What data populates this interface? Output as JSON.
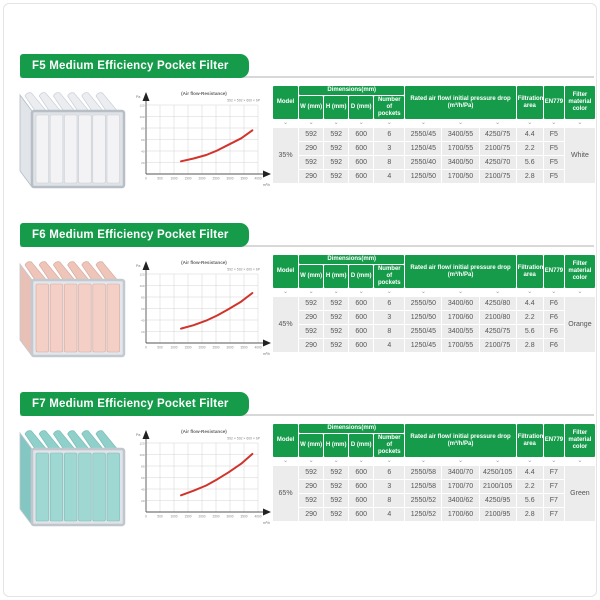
{
  "colors": {
    "brand_green": "#169b4b",
    "banner_text": "#ffffff",
    "row_bg": "#ececec",
    "cell_text": "#555555",
    "curve_red": "#d0342c",
    "divider": "#d8d8d8"
  },
  "icons": {
    "chevron_down": "⌄"
  },
  "table_header": {
    "model": "Model",
    "dimensions": "Dimensions(mm)",
    "w": "W (mm)",
    "h": "H (mm)",
    "d": "D (mm)",
    "pockets": "Number of pockets",
    "airflow": "Rated air flow/ initial pressure drop (m³/h/Pa)",
    "filtration": "Filtration area",
    "en779": "EN779",
    "material": "Filter material color"
  },
  "sections": [
    {
      "id": "f5",
      "banner": "F5 Medium Efficiency Pocket Filter",
      "product": {
        "name": "white-pocket-filter",
        "pocket_color": "#f3f3f5",
        "pocket_top_color": "#ebedf0",
        "side_color": "#e1e4e8",
        "frame_color": "#dfe3e7",
        "frame_stroke": "#b7bec6",
        "pocket_stroke": "#cbd0d6"
      },
      "table": {
        "model": "35%",
        "material_color": "White",
        "rows": [
          {
            "w": "592",
            "h": "592",
            "d": "600",
            "pockets": "6",
            "flow1": "2550/45",
            "flow2": "3400/55",
            "flow3": "4250/75",
            "area": "4.4",
            "grade": "F5"
          },
          {
            "w": "290",
            "h": "592",
            "d": "600",
            "pockets": "3",
            "flow1": "1250/45",
            "flow2": "1700/55",
            "flow3": "2100/75",
            "area": "2.2",
            "grade": "F5"
          },
          {
            "w": "592",
            "h": "592",
            "d": "600",
            "pockets": "8",
            "flow1": "2550/40",
            "flow2": "3400/50",
            "flow3": "4250/70",
            "area": "5.6",
            "grade": "F5"
          },
          {
            "w": "290",
            "h": "592",
            "d": "600",
            "pockets": "4",
            "flow1": "1250/50",
            "flow2": "1700/50",
            "flow3": "2100/75",
            "area": "2.8",
            "grade": "F5"
          }
        ]
      }
    },
    {
      "id": "f6",
      "banner": "F6 Medium Efficiency Pocket Filter",
      "product": {
        "name": "orange-pocket-filter",
        "pocket_color": "#f4cfc5",
        "pocket_top_color": "#f0c5b9",
        "side_color": "#e9c0b5",
        "frame_color": "#e3e6ea",
        "frame_stroke": "#c2c9d0",
        "pocket_stroke": "#d7aca1"
      },
      "table": {
        "model": "45%",
        "material_color": "Orange",
        "rows": [
          {
            "w": "592",
            "h": "592",
            "d": "600",
            "pockets": "6",
            "flow1": "2550/50",
            "flow2": "3400/60",
            "flow3": "4250/80",
            "area": "4.4",
            "grade": "F6"
          },
          {
            "w": "290",
            "h": "592",
            "d": "600",
            "pockets": "3",
            "flow1": "1250/50",
            "flow2": "1700/60",
            "flow3": "2100/80",
            "area": "2.2",
            "grade": "F6"
          },
          {
            "w": "592",
            "h": "592",
            "d": "600",
            "pockets": "8",
            "flow1": "2550/45",
            "flow2": "3400/55",
            "flow3": "4250/75",
            "area": "5.6",
            "grade": "F6"
          },
          {
            "w": "290",
            "h": "592",
            "d": "600",
            "pockets": "4",
            "flow1": "1250/45",
            "flow2": "1700/55",
            "flow3": "2100/75",
            "area": "2.8",
            "grade": "F6"
          }
        ]
      }
    },
    {
      "id": "f7",
      "banner": "F7 Medium Efficiency Pocket Filter",
      "product": {
        "name": "green-pocket-filter",
        "pocket_color": "#9fd8d3",
        "pocket_top_color": "#8fd0cb",
        "side_color": "#84c7c2",
        "frame_color": "#e0e4e8",
        "frame_stroke": "#bfc6cd",
        "pocket_stroke": "#7cbcb7"
      },
      "table": {
        "model": "65%",
        "material_color": "Green",
        "rows": [
          {
            "w": "592",
            "h": "592",
            "d": "600",
            "pockets": "6",
            "flow1": "2550/58",
            "flow2": "3400/70",
            "flow3": "4250/105",
            "area": "4.4",
            "grade": "F7"
          },
          {
            "w": "290",
            "h": "592",
            "d": "600",
            "pockets": "3",
            "flow1": "1250/58",
            "flow2": "1700/70",
            "flow3": "2100/105",
            "area": "2.2",
            "grade": "F7"
          },
          {
            "w": "592",
            "h": "592",
            "d": "600",
            "pockets": "8",
            "flow1": "2550/52",
            "flow2": "3400/62",
            "flow3": "4250/95",
            "area": "5.6",
            "grade": "F7"
          },
          {
            "w": "290",
            "h": "592",
            "d": "600",
            "pockets": "4",
            "flow1": "1250/52",
            "flow2": "1700/60",
            "flow3": "2100/95",
            "area": "2.8",
            "grade": "F7"
          }
        ]
      }
    }
  ],
  "chart_data": [
    {
      "type": "line",
      "title": "(Air flow-Resistance)",
      "legend": "592 × 592 × 600 × 6P",
      "xlabel": "m³/h",
      "ylabel": "Pa",
      "xlim": [
        0,
        4000
      ],
      "ylim": [
        0,
        120
      ],
      "grid": true,
      "x_tick_labels": [
        "0",
        "500",
        "1000",
        "1500",
        "2000",
        "2500",
        "3000",
        "3500",
        "4000"
      ],
      "y_tick_labels": [
        "20",
        "40",
        "60",
        "80",
        "100",
        "120"
      ],
      "series": [
        {
          "name": "592×592×600×6P",
          "points": [
            [
              1250,
              22
            ],
            [
              1700,
              27
            ],
            [
              2150,
              33
            ],
            [
              2550,
              41
            ],
            [
              2950,
              51
            ],
            [
              3400,
              62
            ],
            [
              3800,
              76
            ]
          ]
        }
      ]
    },
    {
      "type": "line",
      "title": "(Air flow-Resistance)",
      "legend": "592 × 592 × 600 × 6P",
      "xlabel": "m³/h",
      "ylabel": "Pa",
      "xlim": [
        0,
        4000
      ],
      "ylim": [
        0,
        120
      ],
      "grid": true,
      "x_tick_labels": [
        "0",
        "500",
        "1000",
        "1500",
        "2000",
        "2500",
        "3000",
        "3500",
        "4000"
      ],
      "y_tick_labels": [
        "20",
        "40",
        "60",
        "80",
        "100",
        "120"
      ],
      "series": [
        {
          "name": "592×592×600×6P",
          "points": [
            [
              1250,
              25
            ],
            [
              1700,
              31
            ],
            [
              2150,
              39
            ],
            [
              2550,
              48
            ],
            [
              2950,
              59
            ],
            [
              3400,
              72
            ],
            [
              3800,
              87
            ]
          ]
        }
      ]
    },
    {
      "type": "line",
      "title": "(Air flow-Resistance)",
      "legend": "592 × 592 × 600 × 6P",
      "xlabel": "m³/h",
      "ylabel": "Pa",
      "xlim": [
        0,
        4000
      ],
      "ylim": [
        0,
        120
      ],
      "grid": true,
      "x_tick_labels": [
        "0",
        "500",
        "1000",
        "1500",
        "2000",
        "2500",
        "3000",
        "3500",
        "4000"
      ],
      "y_tick_labels": [
        "20",
        "40",
        "60",
        "80",
        "100",
        "120"
      ],
      "series": [
        {
          "name": "592×592×600×6P",
          "points": [
            [
              1250,
              29
            ],
            [
              1700,
              37
            ],
            [
              2150,
              46
            ],
            [
              2550,
              57
            ],
            [
              2950,
              69
            ],
            [
              3400,
              84
            ],
            [
              3800,
              101
            ]
          ]
        }
      ]
    }
  ]
}
